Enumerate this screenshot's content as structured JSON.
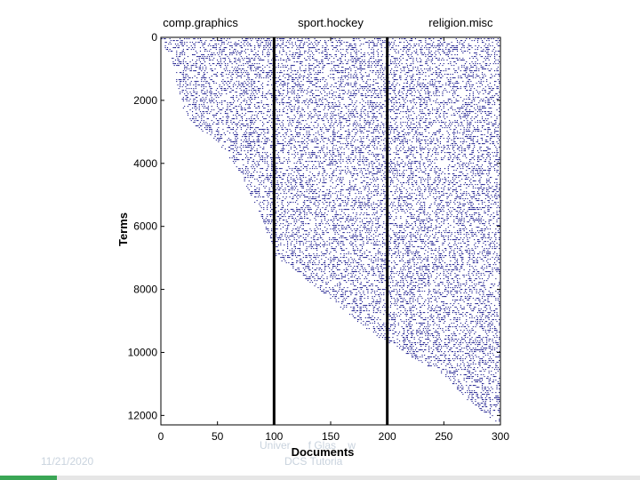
{
  "slide": {
    "footer_date": "11/21/2020",
    "footer_org": "Univer      f Glas    w",
    "footer_course": "DCS Tutoria"
  },
  "colors": {
    "matrix_dot": "#1a1a8c",
    "block_divider": "#000000",
    "axes": "#000000",
    "footer_text": "#c9d3de"
  },
  "chart_data": {
    "type": "scatter",
    "subtype": "sparsity-pattern",
    "title": "",
    "xlabel": "Documents",
    "ylabel": "Terms",
    "xlim": [
      0,
      300
    ],
    "ylim": [
      12300,
      0
    ],
    "y_inverted": true,
    "xticks": [
      0,
      50,
      100,
      150,
      200,
      250,
      300
    ],
    "xtick_labels": [
      "0",
      "50",
      "100",
      "150",
      "200",
      "250",
      "300"
    ],
    "yticks": [
      0,
      2000,
      4000,
      6000,
      8000,
      10000,
      12000
    ],
    "ytick_labels": [
      "0",
      "2000",
      "4000",
      "6000",
      "8000",
      "10000",
      "12000"
    ],
    "grid": false,
    "categories": [
      "comp.graphics",
      "sport.hockey",
      "religion.misc"
    ],
    "category_boundaries": [
      100,
      200
    ],
    "frontier": [
      {
        "x": 0,
        "y": 0
      },
      {
        "x": 10,
        "y": 900
      },
      {
        "x": 20,
        "y": 2300
      },
      {
        "x": 30,
        "y": 2800
      },
      {
        "x": 50,
        "y": 3300
      },
      {
        "x": 70,
        "y": 4300
      },
      {
        "x": 90,
        "y": 5800
      },
      {
        "x": 100,
        "y": 6900
      },
      {
        "x": 150,
        "y": 8300
      },
      {
        "x": 180,
        "y": 9200
      },
      {
        "x": 200,
        "y": 9700
      },
      {
        "x": 250,
        "y": 10700
      },
      {
        "x": 270,
        "y": 11500
      },
      {
        "x": 300,
        "y": 12300
      }
    ]
  }
}
